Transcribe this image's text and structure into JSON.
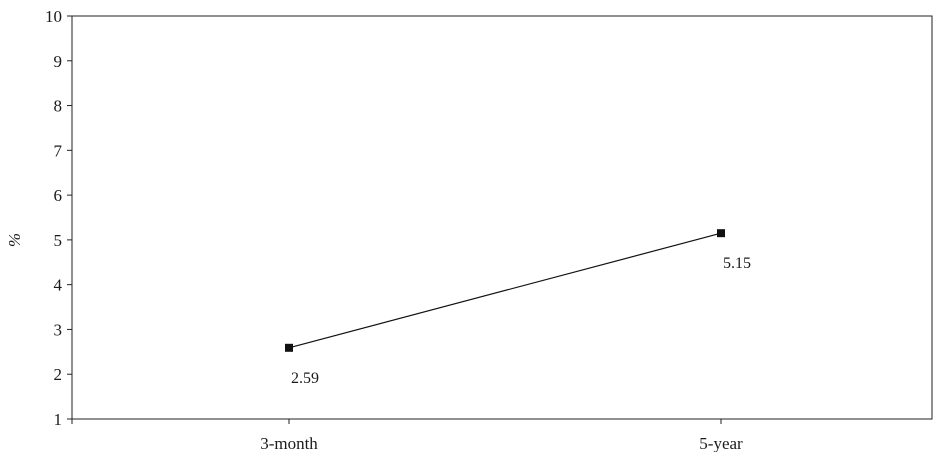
{
  "chart_data": {
    "type": "line",
    "categories": [
      "3-month",
      "5-year"
    ],
    "series": [
      {
        "values": [
          2.59,
          5.15
        ],
        "data_labels": [
          "2.59",
          "5.15"
        ],
        "marker": "square",
        "color": "#111111"
      }
    ],
    "title": "",
    "xlabel": "",
    "ylabel": "%",
    "ylim": [
      1,
      10
    ],
    "yticks": [
      1,
      2,
      3,
      4,
      5,
      6,
      7,
      8,
      9,
      10
    ],
    "grid": false,
    "legend": "none"
  }
}
